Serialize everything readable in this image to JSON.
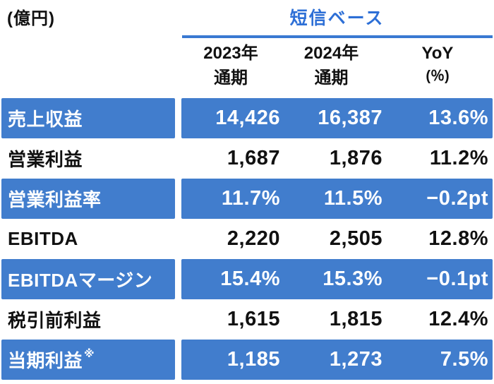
{
  "unit_label": "(億円)",
  "header": {
    "title": "短信ベース",
    "columns": [
      {
        "line1": "2023年",
        "line2": "通期"
      },
      {
        "line1": "2024年",
        "line2": "通期"
      },
      {
        "line1": "YoY",
        "line2": "(％)"
      }
    ]
  },
  "table": {
    "rows": [
      {
        "label": "売上収益",
        "suffix": "",
        "v2023": "14,426",
        "v2024": "16,387",
        "yoy": "13.6%",
        "highlight": true
      },
      {
        "label": "営業利益",
        "suffix": "",
        "v2023": "1,687",
        "v2024": "1,876",
        "yoy": "11.2%",
        "highlight": false
      },
      {
        "label": "営業利益率",
        "suffix": "",
        "v2023": "11.7%",
        "v2024": "11.5%",
        "yoy": "−0.2pt",
        "highlight": true
      },
      {
        "label": "EBITDA",
        "suffix": "",
        "v2023": "2,220",
        "v2024": "2,505",
        "yoy": "12.8%",
        "highlight": false
      },
      {
        "label": "EBITDAマージン",
        "suffix": "",
        "v2023": "15.4%",
        "v2024": "15.3%",
        "yoy": "−0.1pt",
        "highlight": true
      },
      {
        "label": "税引前利益",
        "suffix": "",
        "v2023": "1,615",
        "v2024": "1,815",
        "yoy": "12.4%",
        "highlight": false
      },
      {
        "label": "当期利益",
        "suffix": "※",
        "v2023": "1,185",
        "v2024": "1,273",
        "yoy": "7.5%",
        "highlight": true
      }
    ]
  },
  "colors": {
    "row_blue": "#417DCD",
    "title_blue": "#2D6FD6",
    "rule_blue": "#3A79D2",
    "text_dark": "#111111",
    "text_on_blue": "#FFFFFF"
  },
  "chart_data": {
    "type": "table",
    "title": "短信ベース",
    "unit": "億円",
    "columns": [
      "2023年通期",
      "2024年通期",
      "YoY(％)"
    ],
    "rows": [
      [
        "売上収益",
        "14,426",
        "16,387",
        "13.6%"
      ],
      [
        "営業利益",
        "1,687",
        "1,876",
        "11.2%"
      ],
      [
        "営業利益率",
        "11.7%",
        "11.5%",
        "−0.2pt"
      ],
      [
        "EBITDA",
        "2,220",
        "2,505",
        "12.8%"
      ],
      [
        "EBITDAマージン",
        "15.4%",
        "15.3%",
        "−0.1pt"
      ],
      [
        "税引前利益",
        "1,615",
        "1,815",
        "12.4%"
      ],
      [
        "当期利益※",
        "1,185",
        "1,273",
        "7.5%"
      ]
    ],
    "layout": {
      "highlighted_rows": [
        0,
        2,
        4,
        6
      ],
      "alignment": "values-right"
    }
  }
}
